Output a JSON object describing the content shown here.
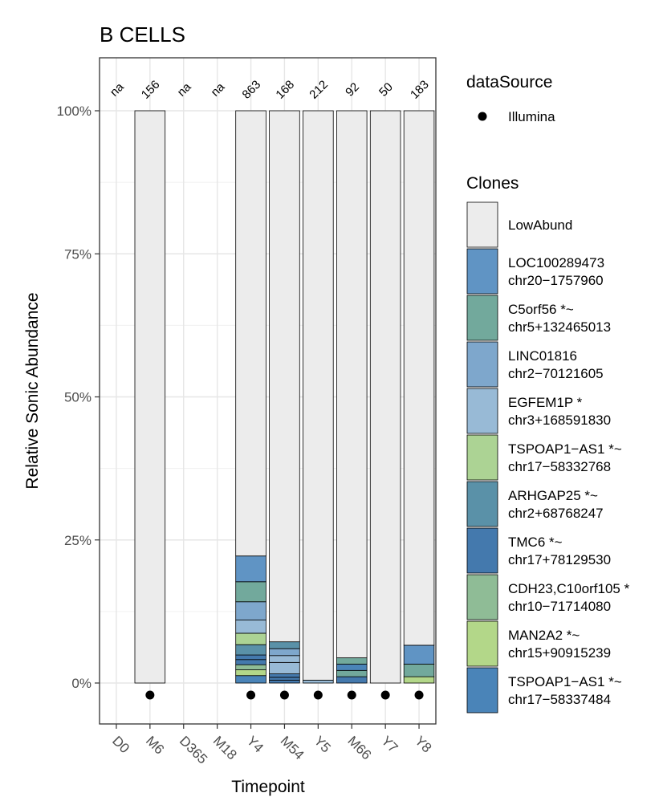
{
  "chart_data": {
    "type": "bar",
    "stacked": true,
    "title": "B CELLS",
    "xlabel": "Timepoint",
    "ylabel": "Relative Sonic Abundance",
    "ylim": [
      -0.07,
      1.1
    ],
    "yticks": [
      0,
      0.25,
      0.5,
      0.75,
      1.0
    ],
    "ytick_labels": [
      "0%",
      "25%",
      "50%",
      "75%",
      "100%"
    ],
    "grid": true,
    "categories": [
      "D0",
      "M6",
      "D365",
      "M18",
      "Y4",
      "M54",
      "Y5",
      "M66",
      "Y7",
      "Y8"
    ],
    "totals": [
      "na",
      "156",
      "na",
      "na",
      "863",
      "168",
      "212",
      "92",
      "50",
      "183"
    ],
    "dataSource": {
      "title": "dataSource",
      "entries": [
        {
          "label": "Illumina",
          "color": "#000000"
        }
      ],
      "present": [
        false,
        true,
        false,
        false,
        true,
        true,
        true,
        true,
        true,
        true
      ]
    },
    "legend": {
      "title": "Clones",
      "position": "right",
      "entries": [
        {
          "key": "LowAbund",
          "lines": [
            "LowAbund"
          ],
          "color": "#ececec"
        },
        {
          "key": "LOC100289473",
          "lines": [
            "LOC100289473",
            "chr20−1757960"
          ],
          "color": "#6094c4"
        },
        {
          "key": "C5orf56",
          "lines": [
            "C5orf56 *~",
            "chr5+132465013"
          ],
          "color": "#72a99c"
        },
        {
          "key": "LINC01816",
          "lines": [
            "LINC01816",
            "chr2−70121605"
          ],
          "color": "#7ea7cc"
        },
        {
          "key": "EGFEM1P",
          "lines": [
            "EGFEM1P *",
            "chr3+168591830"
          ],
          "color": "#98bad6"
        },
        {
          "key": "TSPOAP1-AS1a",
          "lines": [
            "TSPOAP1−AS1 *~",
            "chr17−58332768"
          ],
          "color": "#acd394"
        },
        {
          "key": "ARHGAP25",
          "lines": [
            "ARHGAP25 *~",
            "chr2+68768247"
          ],
          "color": "#5a91a8"
        },
        {
          "key": "TMC6",
          "lines": [
            "TMC6 *~",
            "chr17+78129530"
          ],
          "color": "#4479ad"
        },
        {
          "key": "CDH23",
          "lines": [
            "CDH23,C10orf105 *",
            "chr10−71714080"
          ],
          "color": "#8fbc96"
        },
        {
          "key": "MAN2A2",
          "lines": [
            "MAN2A2 *~",
            "chr15+90915239"
          ],
          "color": "#b3d789"
        },
        {
          "key": "TSPOAP1-AS1b",
          "lines": [
            "TSPOAP1−AS1 *~",
            "chr17−58337484"
          ],
          "color": "#4a84b8"
        }
      ]
    },
    "stacks": [
      {
        "category": "D0",
        "segments": []
      },
      {
        "category": "M6",
        "segments": [
          {
            "key": "LowAbund",
            "value": 1.0
          }
        ]
      },
      {
        "category": "D365",
        "segments": []
      },
      {
        "category": "M18",
        "segments": []
      },
      {
        "category": "Y4",
        "segments": [
          {
            "key": "TSPOAP1-AS1b",
            "value": 0.013
          },
          {
            "key": "MAN2A2",
            "value": 0.01
          },
          {
            "key": "CDH23",
            "value": 0.009
          },
          {
            "key": "TMC6",
            "value": 0.009
          },
          {
            "key": "TMC6",
            "value": 0.008
          },
          {
            "key": "ARHGAP25",
            "value": 0.018
          },
          {
            "key": "TSPOAP1-AS1a",
            "value": 0.02
          },
          {
            "key": "EGFEM1P",
            "value": 0.023
          },
          {
            "key": "LINC01816",
            "value": 0.032
          },
          {
            "key": "C5orf56",
            "value": 0.035
          },
          {
            "key": "LOC100289473",
            "value": 0.045
          },
          {
            "key": "LowAbund",
            "value": 0.778
          }
        ]
      },
      {
        "category": "M54",
        "segments": [
          {
            "key": "TMC6",
            "value": 0.005
          },
          {
            "key": "TMC6",
            "value": 0.005
          },
          {
            "key": "TMC6",
            "value": 0.006
          },
          {
            "key": "EGFEM1P",
            "value": 0.02
          },
          {
            "key": "EGFEM1P",
            "value": 0.012
          },
          {
            "key": "LINC01816",
            "value": 0.012
          },
          {
            "key": "ARHGAP25",
            "value": 0.012
          },
          {
            "key": "LowAbund",
            "value": 0.928
          }
        ]
      },
      {
        "category": "Y5",
        "segments": [
          {
            "key": "EGFEM1P",
            "value": 0.005
          },
          {
            "key": "LowAbund",
            "value": 0.995
          }
        ]
      },
      {
        "category": "M66",
        "segments": [
          {
            "key": "TMC6",
            "value": 0.011
          },
          {
            "key": "C5orf56",
            "value": 0.011
          },
          {
            "key": "TSPOAP1-AS1b",
            "value": 0.011
          },
          {
            "key": "C5orf56",
            "value": 0.011
          },
          {
            "key": "LowAbund",
            "value": 0.956
          }
        ]
      },
      {
        "category": "Y7",
        "segments": [
          {
            "key": "LowAbund",
            "value": 1.0
          }
        ]
      },
      {
        "category": "Y8",
        "segments": [
          {
            "key": "MAN2A2",
            "value": 0.011
          },
          {
            "key": "C5orf56",
            "value": 0.022
          },
          {
            "key": "LOC100289473",
            "value": 0.033
          },
          {
            "key": "LowAbund",
            "value": 0.934
          }
        ]
      }
    ]
  }
}
